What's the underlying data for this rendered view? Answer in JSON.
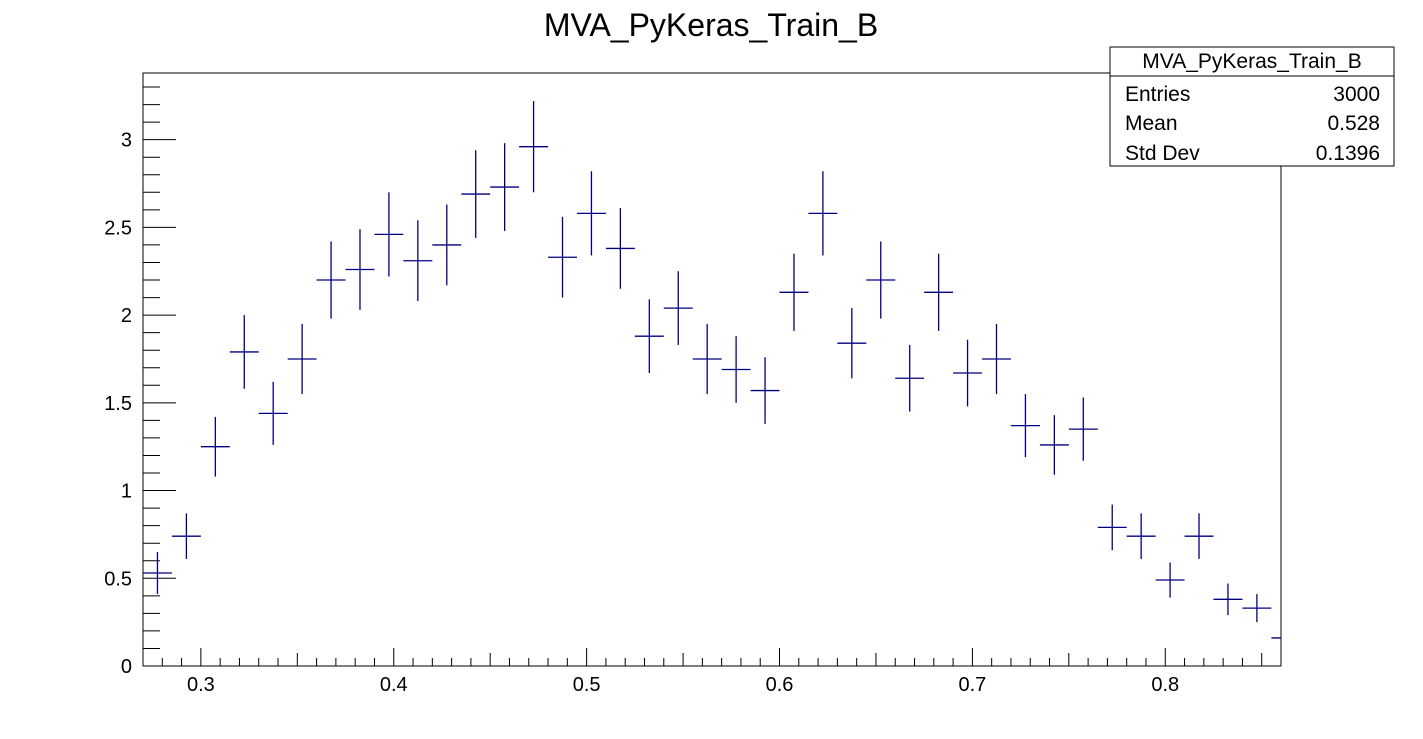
{
  "chart_data": {
    "type": "histogram",
    "title": "MVA_PyKeras_Train_B",
    "xlabel": "",
    "ylabel": "",
    "xlim": [
      0.27,
      0.86
    ],
    "ylim": [
      0,
      3.38
    ],
    "x_ticks": [
      0.3,
      0.4,
      0.5,
      0.6,
      0.7,
      0.8
    ],
    "x_tick_labels": [
      "0.3",
      "0.4",
      "0.5",
      "0.6",
      "0.7",
      "0.8"
    ],
    "y_ticks": [
      0,
      0.5,
      1,
      1.5,
      2,
      2.5,
      3
    ],
    "y_tick_labels": [
      "0",
      "0.5",
      "1",
      "1.5",
      "2",
      "2.5",
      "3"
    ],
    "bin_width": 0.015,
    "series": [
      {
        "color": "#00007f",
        "points": [
          {
            "x": 0.2775,
            "y": 0.53,
            "err": 0.12
          },
          {
            "x": 0.2925,
            "y": 0.74,
            "err": 0.13
          },
          {
            "x": 0.3075,
            "y": 1.25,
            "err": 0.17
          },
          {
            "x": 0.3225,
            "y": 1.79,
            "err": 0.21
          },
          {
            "x": 0.3375,
            "y": 1.44,
            "err": 0.18
          },
          {
            "x": 0.3525,
            "y": 1.75,
            "err": 0.2
          },
          {
            "x": 0.3675,
            "y": 2.2,
            "err": 0.22
          },
          {
            "x": 0.3825,
            "y": 2.26,
            "err": 0.23
          },
          {
            "x": 0.3975,
            "y": 2.46,
            "err": 0.24
          },
          {
            "x": 0.4125,
            "y": 2.31,
            "err": 0.23
          },
          {
            "x": 0.4275,
            "y": 2.4,
            "err": 0.23
          },
          {
            "x": 0.4425,
            "y": 2.69,
            "err": 0.25
          },
          {
            "x": 0.4575,
            "y": 2.73,
            "err": 0.25
          },
          {
            "x": 0.4725,
            "y": 2.96,
            "err": 0.26
          },
          {
            "x": 0.4875,
            "y": 2.33,
            "err": 0.23
          },
          {
            "x": 0.5025,
            "y": 2.58,
            "err": 0.24
          },
          {
            "x": 0.5175,
            "y": 2.38,
            "err": 0.23
          },
          {
            "x": 0.5325,
            "y": 1.88,
            "err": 0.21
          },
          {
            "x": 0.5475,
            "y": 2.04,
            "err": 0.21
          },
          {
            "x": 0.5625,
            "y": 1.75,
            "err": 0.2
          },
          {
            "x": 0.5775,
            "y": 1.69,
            "err": 0.19
          },
          {
            "x": 0.5925,
            "y": 1.57,
            "err": 0.19
          },
          {
            "x": 0.6075,
            "y": 2.13,
            "err": 0.22
          },
          {
            "x": 0.6225,
            "y": 2.58,
            "err": 0.24
          },
          {
            "x": 0.6375,
            "y": 1.84,
            "err": 0.2
          },
          {
            "x": 0.6525,
            "y": 2.2,
            "err": 0.22
          },
          {
            "x": 0.6675,
            "y": 1.64,
            "err": 0.19
          },
          {
            "x": 0.6825,
            "y": 2.13,
            "err": 0.22
          },
          {
            "x": 0.6975,
            "y": 1.67,
            "err": 0.19
          },
          {
            "x": 0.7125,
            "y": 1.75,
            "err": 0.2
          },
          {
            "x": 0.7275,
            "y": 1.37,
            "err": 0.18
          },
          {
            "x": 0.7425,
            "y": 1.26,
            "err": 0.17
          },
          {
            "x": 0.7575,
            "y": 1.35,
            "err": 0.18
          },
          {
            "x": 0.7725,
            "y": 0.79,
            "err": 0.13
          },
          {
            "x": 0.7875,
            "y": 0.74,
            "err": 0.13
          },
          {
            "x": 0.8025,
            "y": 0.49,
            "err": 0.1
          },
          {
            "x": 0.8175,
            "y": 0.74,
            "err": 0.13
          },
          {
            "x": 0.8325,
            "y": 0.38,
            "err": 0.09
          },
          {
            "x": 0.8475,
            "y": 0.33,
            "err": 0.08
          },
          {
            "x": 0.8625,
            "y": 0.16,
            "err": 0.06
          }
        ]
      }
    ],
    "stats_box": {
      "name": "MVA_PyKeras_Train_B",
      "entries_label": "Entries",
      "entries_value": "3000",
      "mean_label": "Mean",
      "mean_value": "0.528",
      "stddev_label": "Std Dev",
      "stddev_value": "0.1396"
    }
  }
}
